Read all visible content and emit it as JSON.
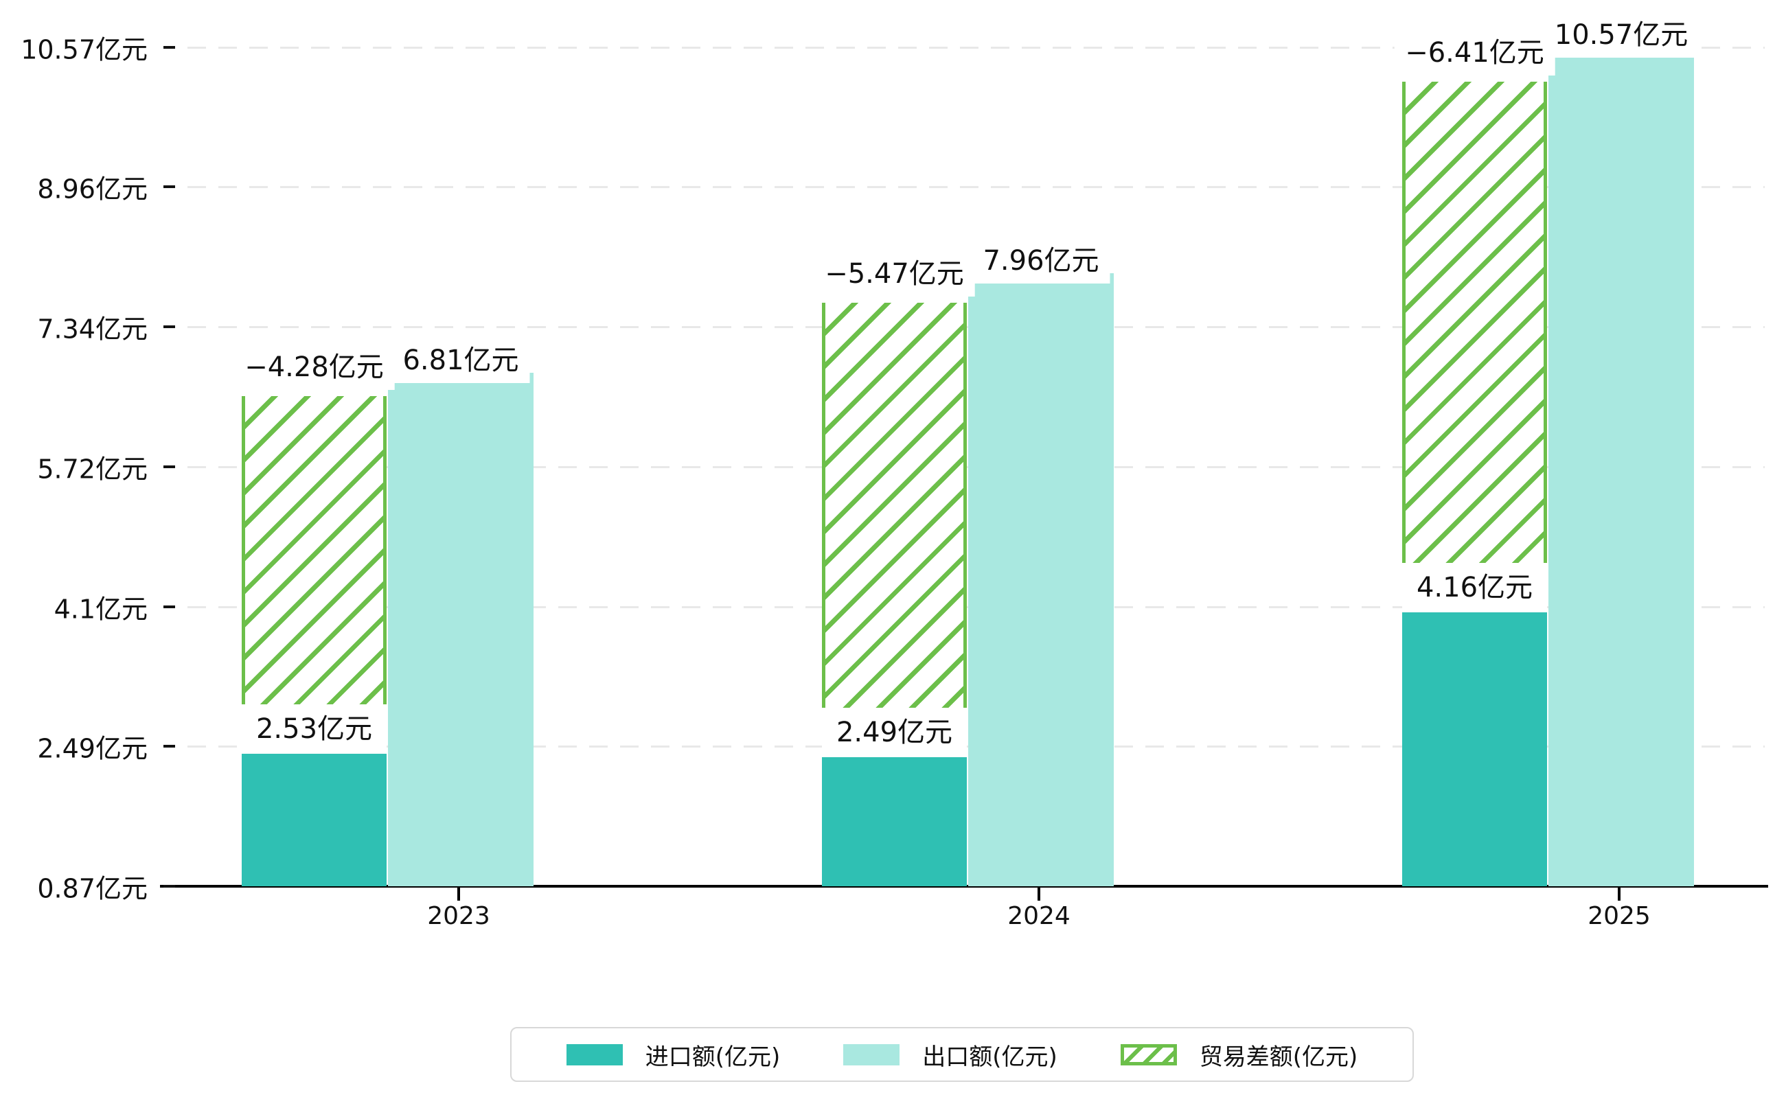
{
  "chart_data": {
    "type": "bar",
    "title": "",
    "categories": [
      "2023",
      "2024",
      "2025"
    ],
    "unit": "亿元",
    "series": [
      {
        "name": "进口额(亿元)",
        "values": [
          2.53,
          2.49,
          4.16
        ],
        "value_labels": [
          "2.53亿元",
          "2.49亿元",
          "4.16亿元"
        ],
        "color": "#2fc0b3",
        "style": "solid"
      },
      {
        "name": "出口额(亿元)",
        "values": [
          6.81,
          7.96,
          10.57
        ],
        "value_labels": [
          "6.81亿元",
          "7.96亿元",
          "10.57亿元"
        ],
        "color": "#a9e8e0",
        "style": "solid"
      },
      {
        "name": "贸易差额(亿元)",
        "values": [
          -4.28,
          -5.47,
          -6.41
        ],
        "value_labels": [
          "−4.28亿元",
          "−5.47亿元",
          "−6.41亿元"
        ],
        "color": "#6cbf4a",
        "style": "hatched-outline",
        "note": "drawn as hatched segment stacked on top of import bar, spanning gap between import and export"
      }
    ],
    "y_axis": {
      "min": 0.87,
      "max": 10.57,
      "ticks": [
        {
          "value": 0.87,
          "label": "0.87亿元"
        },
        {
          "value": 2.49,
          "label": "2.49亿元"
        },
        {
          "value": 4.1,
          "label": "4.1亿元"
        },
        {
          "value": 5.72,
          "label": "5.72亿元"
        },
        {
          "value": 7.34,
          "label": "7.34亿元"
        },
        {
          "value": 8.96,
          "label": "8.96亿元"
        },
        {
          "value": 10.57,
          "label": "10.57亿元"
        }
      ]
    },
    "x_axis": {
      "tick_labels": [
        "2023",
        "2024",
        "2025"
      ]
    },
    "grid": {
      "horizontal": true,
      "style": "dashed",
      "color": "#e8e8e8"
    },
    "legend": {
      "position": "bottom",
      "entries": [
        "进口额(亿元)",
        "出口额(亿元)",
        "贸易差额(亿元)"
      ]
    },
    "colors": {
      "import_bar": "#2fc0b3",
      "export_bar": "#a9e8e0",
      "balance_hatch": "#6cbf4a",
      "axis": "#000000",
      "text": "#111111",
      "background": "#ffffff"
    }
  }
}
